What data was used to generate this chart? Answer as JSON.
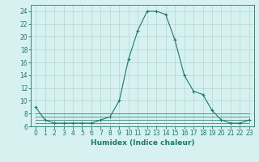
{
  "xlabel": "Humidex (Indice chaleur)",
  "x": [
    0,
    1,
    2,
    3,
    4,
    5,
    6,
    7,
    8,
    9,
    10,
    11,
    12,
    13,
    14,
    15,
    16,
    17,
    18,
    19,
    20,
    21,
    22,
    23
  ],
  "series1": [
    9,
    7,
    6.5,
    6.5,
    6.5,
    6.5,
    6.5,
    7,
    7.5,
    10,
    16.5,
    21,
    24,
    24,
    23.5,
    19.5,
    14,
    11.5,
    11,
    8.5,
    7,
    6.5,
    6.5,
    7
  ],
  "flat_lines": [
    [
      6.5,
      6.5,
      6.5,
      6.5,
      6.5,
      6.5,
      6.5,
      6.5,
      6.5,
      6.5,
      6.5,
      6.5,
      6.5,
      6.5,
      6.5,
      6.5,
      6.5,
      6.5,
      6.5,
      6.5,
      6.5,
      6.5,
      6.5,
      6.5
    ],
    [
      7.0,
      7.0,
      7.0,
      7.0,
      7.0,
      7.0,
      7.0,
      7.0,
      7.0,
      7.0,
      7.0,
      7.0,
      7.0,
      7.0,
      7.0,
      7.0,
      7.0,
      7.0,
      7.0,
      7.0,
      7.0,
      7.0,
      7.0,
      7.0
    ],
    [
      7.5,
      7.5,
      7.5,
      7.5,
      7.5,
      7.5,
      7.5,
      7.5,
      7.5,
      7.5,
      7.5,
      7.5,
      7.5,
      7.5,
      7.5,
      7.5,
      7.5,
      7.5,
      7.5,
      7.5,
      7.5,
      7.5,
      7.5,
      7.5
    ],
    [
      8.0,
      8.0,
      8.0,
      8.0,
      8.0,
      8.0,
      8.0,
      8.0,
      8.0,
      8.0,
      8.0,
      8.0,
      8.0,
      8.0,
      8.0,
      8.0,
      8.0,
      8.0,
      8.0,
      8.0,
      8.0,
      8.0,
      8.0,
      8.0
    ]
  ],
  "line_color": "#1a7a6e",
  "bg_color": "#d7f0f0",
  "grid_color": "#b0d8d8",
  "ylim": [
    6,
    25
  ],
  "yticks": [
    6,
    8,
    10,
    12,
    14,
    16,
    18,
    20,
    22,
    24
  ],
  "xticks": [
    0,
    1,
    2,
    3,
    4,
    5,
    6,
    7,
    8,
    9,
    10,
    11,
    12,
    13,
    14,
    15,
    16,
    17,
    18,
    19,
    20,
    21,
    22,
    23
  ],
  "xlabel_fontsize": 6.5,
  "tick_fontsize": 5.5
}
